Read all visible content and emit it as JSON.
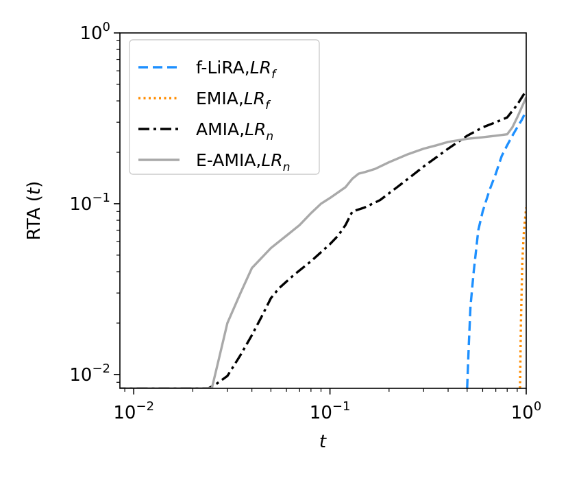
{
  "chart_data": {
    "type": "line",
    "title": "",
    "xlabel": "t",
    "ylabel": "RTA (t)",
    "xscale": "log",
    "yscale": "log",
    "xlim": [
      0.0085,
      1.0
    ],
    "ylim": [
      0.0083,
      1.0
    ],
    "grid": false,
    "legend_position": "upper-left",
    "x_ticks": [
      {
        "value": 0.01,
        "base": "10",
        "exp": "−2"
      },
      {
        "value": 0.1,
        "base": "10",
        "exp": "−1"
      },
      {
        "value": 1.0,
        "base": "10",
        "exp": "0"
      }
    ],
    "y_ticks": [
      {
        "value": 0.01,
        "base": "10",
        "exp": "−2"
      },
      {
        "value": 0.1,
        "base": "10",
        "exp": "−1"
      },
      {
        "value": 1.0,
        "base": "10",
        "exp": "0"
      }
    ],
    "series": [
      {
        "name": "f-LiRA,",
        "name_italic": "LR",
        "name_sub": "f",
        "color": "#1E90FF",
        "style": "dashed",
        "points": [
          [
            0.5,
            0.0083
          ],
          [
            0.51,
            0.015
          ],
          [
            0.52,
            0.025
          ],
          [
            0.54,
            0.04
          ],
          [
            0.57,
            0.07
          ],
          [
            0.6,
            0.09
          ],
          [
            0.65,
            0.12
          ],
          [
            0.7,
            0.15
          ],
          [
            0.75,
            0.19
          ],
          [
            0.8,
            0.22
          ],
          [
            0.85,
            0.25
          ],
          [
            0.9,
            0.28
          ],
          [
            0.95,
            0.31
          ],
          [
            1.0,
            0.35
          ]
        ]
      },
      {
        "name": "EMIA,",
        "name_italic": "LR",
        "name_sub": "f",
        "color": "#FF8C00",
        "style": "dotted",
        "points": [
          [
            0.93,
            0.0083
          ],
          [
            0.94,
            0.02
          ],
          [
            0.955,
            0.045
          ],
          [
            0.97,
            0.065
          ],
          [
            0.985,
            0.08
          ],
          [
            1.0,
            0.095
          ]
        ]
      },
      {
        "name": "AMIA,",
        "name_italic": "LR",
        "name_sub": "n",
        "color": "#000000",
        "style": "dashdot",
        "points": [
          [
            0.008,
            0.0083
          ],
          [
            0.024,
            0.0083
          ],
          [
            0.026,
            0.0087
          ],
          [
            0.03,
            0.0098
          ],
          [
            0.035,
            0.013
          ],
          [
            0.04,
            0.017
          ],
          [
            0.045,
            0.022
          ],
          [
            0.05,
            0.028
          ],
          [
            0.055,
            0.032
          ],
          [
            0.065,
            0.038
          ],
          [
            0.08,
            0.046
          ],
          [
            0.1,
            0.058
          ],
          [
            0.11,
            0.065
          ],
          [
            0.12,
            0.075
          ],
          [
            0.13,
            0.09
          ],
          [
            0.15,
            0.095
          ],
          [
            0.18,
            0.105
          ],
          [
            0.22,
            0.125
          ],
          [
            0.26,
            0.145
          ],
          [
            0.3,
            0.165
          ],
          [
            0.4,
            0.21
          ],
          [
            0.5,
            0.25
          ],
          [
            0.6,
            0.28
          ],
          [
            0.7,
            0.3
          ],
          [
            0.8,
            0.32
          ],
          [
            0.9,
            0.38
          ],
          [
            1.0,
            0.46
          ]
        ]
      },
      {
        "name": "E-AMIA,",
        "name_italic": "LR",
        "name_sub": "n",
        "color": "#A9A9A9",
        "style": "solid",
        "points": [
          [
            0.008,
            0.0083
          ],
          [
            0.025,
            0.0083
          ],
          [
            0.027,
            0.012
          ],
          [
            0.03,
            0.02
          ],
          [
            0.035,
            0.03
          ],
          [
            0.04,
            0.042
          ],
          [
            0.05,
            0.055
          ],
          [
            0.06,
            0.065
          ],
          [
            0.07,
            0.075
          ],
          [
            0.08,
            0.088
          ],
          [
            0.09,
            0.1
          ],
          [
            0.1,
            0.108
          ],
          [
            0.12,
            0.125
          ],
          [
            0.13,
            0.14
          ],
          [
            0.14,
            0.15
          ],
          [
            0.15,
            0.153
          ],
          [
            0.17,
            0.16
          ],
          [
            0.2,
            0.175
          ],
          [
            0.25,
            0.195
          ],
          [
            0.3,
            0.21
          ],
          [
            0.35,
            0.22
          ],
          [
            0.4,
            0.23
          ],
          [
            0.5,
            0.24
          ],
          [
            0.6,
            0.245
          ],
          [
            0.7,
            0.25
          ],
          [
            0.8,
            0.255
          ],
          [
            0.85,
            0.28
          ],
          [
            0.9,
            0.32
          ],
          [
            1.0,
            0.42
          ]
        ]
      }
    ]
  }
}
